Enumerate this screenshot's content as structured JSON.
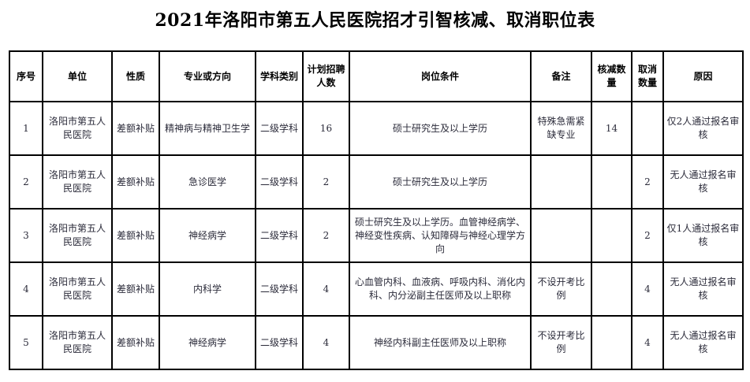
{
  "title": "2021年洛阳市第五人民医院招才引智核减、取消职位表",
  "table": {
    "headers": [
      "序号",
      "单位",
      "性质",
      "专业或方向",
      "学科类别",
      "计划招聘人数",
      "岗位条件",
      "备注",
      "核减数量",
      "取消数量",
      "原因"
    ],
    "rows": [
      [
        "1",
        "洛阳市第五人民医院",
        "差额补贴",
        "精神病与精神卫生学",
        "二级学科",
        "16",
        "硕士研究生及以上学历",
        "特殊急需紧缺专业",
        "14",
        "",
        "仅2人通过报名审核"
      ],
      [
        "2",
        "洛阳市第五人民医院",
        "差额补贴",
        "急诊医学",
        "二级学科",
        "2",
        "硕士研究生及以上学历",
        "",
        "",
        "2",
        "无人通过报名审核"
      ],
      [
        "3",
        "洛阳市第五人民医院",
        "差额补贴",
        "神经病学",
        "二级学科",
        "2",
        "硕士研究生及以上学历。血管神经病学、神经变性疾病、认知障碍与神经心理学方向",
        "",
        "",
        "2",
        "仅1人通过报名审核"
      ],
      [
        "4",
        "洛阳市第五人民医院",
        "差额补贴",
        "内科学",
        "二级学科",
        "4",
        "心血管内科、血液病、呼吸内科、消化内科、内分泌副主任医师及以上职称",
        "不设开考比例",
        "",
        "4",
        "无人通过报名审核"
      ],
      [
        "5",
        "洛阳市第五人民医院",
        "差额补贴",
        "神经病学",
        "二级学科",
        "4",
        "神经内科副主任医师及以上职称",
        "不设开考比例",
        "",
        "4",
        "无人通过报名审核"
      ]
    ]
  }
}
